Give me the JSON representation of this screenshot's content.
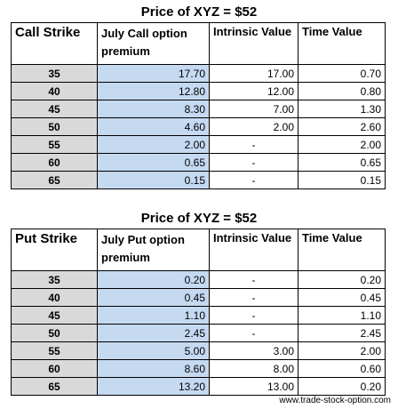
{
  "call_title": "Price of XYZ = $52",
  "call_headers": {
    "strike": "Call Strike",
    "premium": "July Call option premium",
    "intrinsic": "Intrinsic Value",
    "time": "Time Value"
  },
  "call_rows": [
    {
      "strike": "35",
      "premium": "17.70",
      "intrinsic": "17.00",
      "time": "0.70"
    },
    {
      "strike": "40",
      "premium": "12.80",
      "intrinsic": "12.00",
      "time": "0.80"
    },
    {
      "strike": "45",
      "premium": "8.30",
      "intrinsic": "7.00",
      "time": "1.30"
    },
    {
      "strike": "50",
      "premium": "4.60",
      "intrinsic": "2.00",
      "time": "2.60"
    },
    {
      "strike": "55",
      "premium": "2.00",
      "intrinsic": "-",
      "time": "2.00"
    },
    {
      "strike": "60",
      "premium": "0.65",
      "intrinsic": "-",
      "time": "0.65"
    },
    {
      "strike": "65",
      "premium": "0.15",
      "intrinsic": "-",
      "time": "0.15"
    }
  ],
  "put_title": "Price of XYZ = $52",
  "put_headers": {
    "strike": "Put Strike",
    "premium": "July Put option premium",
    "intrinsic": "Intrinsic Value",
    "time": "Time Value"
  },
  "put_rows": [
    {
      "strike": "35",
      "premium": "0.20",
      "intrinsic": "-",
      "time": "0.20"
    },
    {
      "strike": "40",
      "premium": "0.45",
      "intrinsic": "-",
      "time": "0.45"
    },
    {
      "strike": "45",
      "premium": "1.10",
      "intrinsic": "-",
      "time": "1.10"
    },
    {
      "strike": "50",
      "premium": "2.45",
      "intrinsic": "-",
      "time": "2.45"
    },
    {
      "strike": "55",
      "premium": "5.00",
      "intrinsic": "3.00",
      "time": "2.00"
    },
    {
      "strike": "60",
      "premium": "8.60",
      "intrinsic": "8.00",
      "time": "0.60"
    },
    {
      "strike": "65",
      "premium": "13.20",
      "intrinsic": "13.00",
      "time": "0.20"
    }
  ],
  "footer": "www.trade-stock-option.com",
  "colors": {
    "strike_cell": "#d9d9d9",
    "premium_cell": "#c5d9f1",
    "border": "#000000"
  }
}
